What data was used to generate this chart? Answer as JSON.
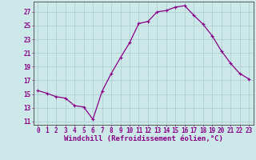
{
  "x": [
    0,
    1,
    2,
    3,
    4,
    5,
    6,
    7,
    8,
    9,
    10,
    11,
    12,
    13,
    14,
    15,
    16,
    17,
    18,
    19,
    20,
    21,
    22,
    23
  ],
  "y": [
    15.5,
    15.1,
    14.6,
    14.4,
    13.3,
    13.1,
    11.3,
    15.4,
    18.0,
    20.3,
    22.5,
    25.3,
    25.6,
    27.0,
    27.2,
    27.7,
    27.9,
    26.5,
    25.2,
    23.5,
    21.3,
    19.5,
    18.0,
    17.2
  ],
  "line_color": "#880088",
  "marker": "+",
  "marker_size": 3.5,
  "marker_lw": 0.8,
  "bg_color": "#cce8e8",
  "grid_color": "#aacccc",
  "xlabel": "Windchill (Refroidissement éolien,°C)",
  "xlabel_color": "#880088",
  "ylabel_ticks": [
    11,
    13,
    15,
    17,
    19,
    21,
    23,
    25,
    27
  ],
  "xlim": [
    -0.5,
    23.5
  ],
  "ylim": [
    10.5,
    28.5
  ],
  "xticks": [
    0,
    1,
    2,
    3,
    4,
    5,
    6,
    7,
    8,
    9,
    10,
    11,
    12,
    13,
    14,
    15,
    16,
    17,
    18,
    19,
    20,
    21,
    22,
    23
  ],
  "tick_color": "#880088",
  "tick_fontsize": 5.5,
  "xlabel_fontsize": 6.5,
  "line_width": 0.9
}
